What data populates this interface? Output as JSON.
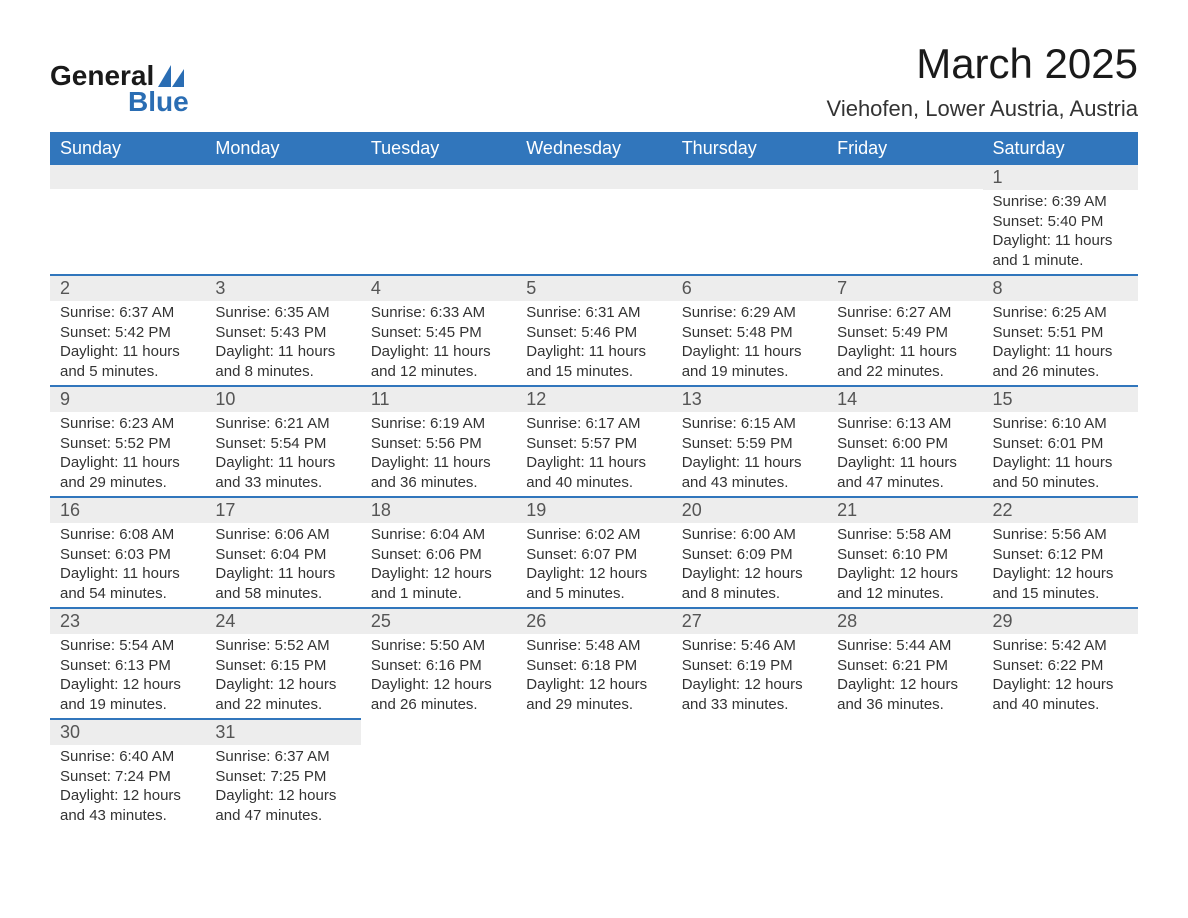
{
  "brand": {
    "line1": "General",
    "line2": "Blue",
    "accent_color": "#2a6db3"
  },
  "title": "March 2025",
  "location": "Viehofen, Lower Austria, Austria",
  "colors": {
    "header_bg": "#3176bc",
    "header_text": "#ffffff",
    "daynum_bg": "#ededed",
    "row_divider": "#3176bc",
    "body_text": "#333333",
    "background": "#ffffff"
  },
  "typography": {
    "title_fontsize": 42,
    "location_fontsize": 22,
    "header_fontsize": 18,
    "daynum_fontsize": 18,
    "body_fontsize": 15,
    "font_family": "Arial"
  },
  "weekdays": [
    "Sunday",
    "Monday",
    "Tuesday",
    "Wednesday",
    "Thursday",
    "Friday",
    "Saturday"
  ],
  "weeks": [
    [
      null,
      null,
      null,
      null,
      null,
      null,
      {
        "n": "1",
        "sr": "Sunrise: 6:39 AM",
        "ss": "Sunset: 5:40 PM",
        "d1": "Daylight: 11 hours",
        "d2": "and 1 minute."
      }
    ],
    [
      {
        "n": "2",
        "sr": "Sunrise: 6:37 AM",
        "ss": "Sunset: 5:42 PM",
        "d1": "Daylight: 11 hours",
        "d2": "and 5 minutes."
      },
      {
        "n": "3",
        "sr": "Sunrise: 6:35 AM",
        "ss": "Sunset: 5:43 PM",
        "d1": "Daylight: 11 hours",
        "d2": "and 8 minutes."
      },
      {
        "n": "4",
        "sr": "Sunrise: 6:33 AM",
        "ss": "Sunset: 5:45 PM",
        "d1": "Daylight: 11 hours",
        "d2": "and 12 minutes."
      },
      {
        "n": "5",
        "sr": "Sunrise: 6:31 AM",
        "ss": "Sunset: 5:46 PM",
        "d1": "Daylight: 11 hours",
        "d2": "and 15 minutes."
      },
      {
        "n": "6",
        "sr": "Sunrise: 6:29 AM",
        "ss": "Sunset: 5:48 PM",
        "d1": "Daylight: 11 hours",
        "d2": "and 19 minutes."
      },
      {
        "n": "7",
        "sr": "Sunrise: 6:27 AM",
        "ss": "Sunset: 5:49 PM",
        "d1": "Daylight: 11 hours",
        "d2": "and 22 minutes."
      },
      {
        "n": "8",
        "sr": "Sunrise: 6:25 AM",
        "ss": "Sunset: 5:51 PM",
        "d1": "Daylight: 11 hours",
        "d2": "and 26 minutes."
      }
    ],
    [
      {
        "n": "9",
        "sr": "Sunrise: 6:23 AM",
        "ss": "Sunset: 5:52 PM",
        "d1": "Daylight: 11 hours",
        "d2": "and 29 minutes."
      },
      {
        "n": "10",
        "sr": "Sunrise: 6:21 AM",
        "ss": "Sunset: 5:54 PM",
        "d1": "Daylight: 11 hours",
        "d2": "and 33 minutes."
      },
      {
        "n": "11",
        "sr": "Sunrise: 6:19 AM",
        "ss": "Sunset: 5:56 PM",
        "d1": "Daylight: 11 hours",
        "d2": "and 36 minutes."
      },
      {
        "n": "12",
        "sr": "Sunrise: 6:17 AM",
        "ss": "Sunset: 5:57 PM",
        "d1": "Daylight: 11 hours",
        "d2": "and 40 minutes."
      },
      {
        "n": "13",
        "sr": "Sunrise: 6:15 AM",
        "ss": "Sunset: 5:59 PM",
        "d1": "Daylight: 11 hours",
        "d2": "and 43 minutes."
      },
      {
        "n": "14",
        "sr": "Sunrise: 6:13 AM",
        "ss": "Sunset: 6:00 PM",
        "d1": "Daylight: 11 hours",
        "d2": "and 47 minutes."
      },
      {
        "n": "15",
        "sr": "Sunrise: 6:10 AM",
        "ss": "Sunset: 6:01 PM",
        "d1": "Daylight: 11 hours",
        "d2": "and 50 minutes."
      }
    ],
    [
      {
        "n": "16",
        "sr": "Sunrise: 6:08 AM",
        "ss": "Sunset: 6:03 PM",
        "d1": "Daylight: 11 hours",
        "d2": "and 54 minutes."
      },
      {
        "n": "17",
        "sr": "Sunrise: 6:06 AM",
        "ss": "Sunset: 6:04 PM",
        "d1": "Daylight: 11 hours",
        "d2": "and 58 minutes."
      },
      {
        "n": "18",
        "sr": "Sunrise: 6:04 AM",
        "ss": "Sunset: 6:06 PM",
        "d1": "Daylight: 12 hours",
        "d2": "and 1 minute."
      },
      {
        "n": "19",
        "sr": "Sunrise: 6:02 AM",
        "ss": "Sunset: 6:07 PM",
        "d1": "Daylight: 12 hours",
        "d2": "and 5 minutes."
      },
      {
        "n": "20",
        "sr": "Sunrise: 6:00 AM",
        "ss": "Sunset: 6:09 PM",
        "d1": "Daylight: 12 hours",
        "d2": "and 8 minutes."
      },
      {
        "n": "21",
        "sr": "Sunrise: 5:58 AM",
        "ss": "Sunset: 6:10 PM",
        "d1": "Daylight: 12 hours",
        "d2": "and 12 minutes."
      },
      {
        "n": "22",
        "sr": "Sunrise: 5:56 AM",
        "ss": "Sunset: 6:12 PM",
        "d1": "Daylight: 12 hours",
        "d2": "and 15 minutes."
      }
    ],
    [
      {
        "n": "23",
        "sr": "Sunrise: 5:54 AM",
        "ss": "Sunset: 6:13 PM",
        "d1": "Daylight: 12 hours",
        "d2": "and 19 minutes."
      },
      {
        "n": "24",
        "sr": "Sunrise: 5:52 AM",
        "ss": "Sunset: 6:15 PM",
        "d1": "Daylight: 12 hours",
        "d2": "and 22 minutes."
      },
      {
        "n": "25",
        "sr": "Sunrise: 5:50 AM",
        "ss": "Sunset: 6:16 PM",
        "d1": "Daylight: 12 hours",
        "d2": "and 26 minutes."
      },
      {
        "n": "26",
        "sr": "Sunrise: 5:48 AM",
        "ss": "Sunset: 6:18 PM",
        "d1": "Daylight: 12 hours",
        "d2": "and 29 minutes."
      },
      {
        "n": "27",
        "sr": "Sunrise: 5:46 AM",
        "ss": "Sunset: 6:19 PM",
        "d1": "Daylight: 12 hours",
        "d2": "and 33 minutes."
      },
      {
        "n": "28",
        "sr": "Sunrise: 5:44 AM",
        "ss": "Sunset: 6:21 PM",
        "d1": "Daylight: 12 hours",
        "d2": "and 36 minutes."
      },
      {
        "n": "29",
        "sr": "Sunrise: 5:42 AM",
        "ss": "Sunset: 6:22 PM",
        "d1": "Daylight: 12 hours",
        "d2": "and 40 minutes."
      }
    ],
    [
      {
        "n": "30",
        "sr": "Sunrise: 6:40 AM",
        "ss": "Sunset: 7:24 PM",
        "d1": "Daylight: 12 hours",
        "d2": "and 43 minutes."
      },
      {
        "n": "31",
        "sr": "Sunrise: 6:37 AM",
        "ss": "Sunset: 7:25 PM",
        "d1": "Daylight: 12 hours",
        "d2": "and 47 minutes."
      },
      null,
      null,
      null,
      null,
      null
    ]
  ]
}
